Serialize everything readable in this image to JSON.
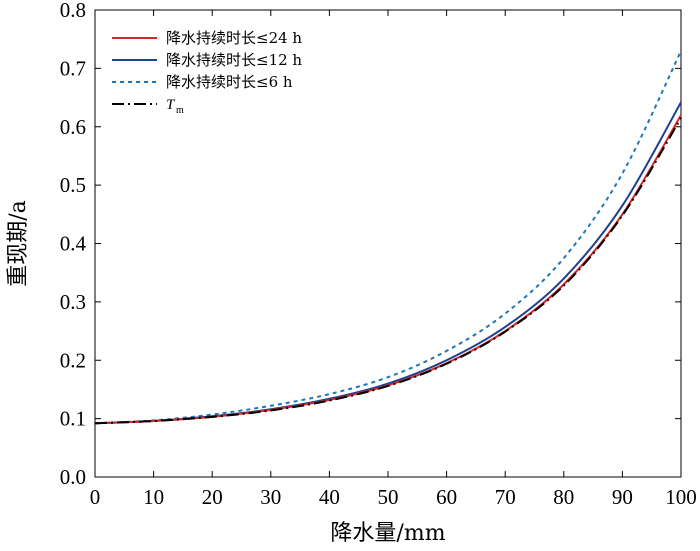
{
  "chart_data": {
    "type": "line",
    "xlabel": "降水量/mm",
    "ylabel": "重现期/a",
    "xlim": [
      0,
      100
    ],
    "ylim": [
      0.0,
      0.8
    ],
    "xticks": [
      0,
      10,
      20,
      30,
      40,
      50,
      60,
      70,
      80,
      90,
      100
    ],
    "yticks": [
      "0.0",
      "0.1",
      "0.2",
      "0.3",
      "0.4",
      "0.5",
      "0.6",
      "0.7",
      "0.8"
    ],
    "grid": false,
    "legend_position": "top-left",
    "x": [
      0,
      10,
      20,
      30,
      40,
      50,
      60,
      70,
      80,
      90,
      100
    ],
    "series": [
      {
        "name": "降水持续时长≤24 h",
        "color": "#d62728",
        "style": "solid",
        "values": [
          0.092,
          0.096,
          0.103,
          0.115,
          0.132,
          0.157,
          0.195,
          0.25,
          0.33,
          0.45,
          0.62
        ]
      },
      {
        "name": "降水持续时长≤12 h",
        "color": "#1f3f8f",
        "style": "solid",
        "values": [
          0.092,
          0.096,
          0.104,
          0.116,
          0.134,
          0.16,
          0.2,
          0.257,
          0.34,
          0.465,
          0.642
        ]
      },
      {
        "name": "降水持续时长≤6 h",
        "color": "#1f77b4",
        "style": "dotted",
        "values": [
          0.092,
          0.097,
          0.107,
          0.122,
          0.142,
          0.171,
          0.216,
          0.28,
          0.375,
          0.52,
          0.73
        ]
      },
      {
        "name": "T",
        "name_sub": "m",
        "color": "#000000",
        "style": "dashdot",
        "values": [
          0.092,
          0.096,
          0.103,
          0.114,
          0.131,
          0.156,
          0.194,
          0.249,
          0.328,
          0.448,
          0.615
        ]
      }
    ]
  }
}
